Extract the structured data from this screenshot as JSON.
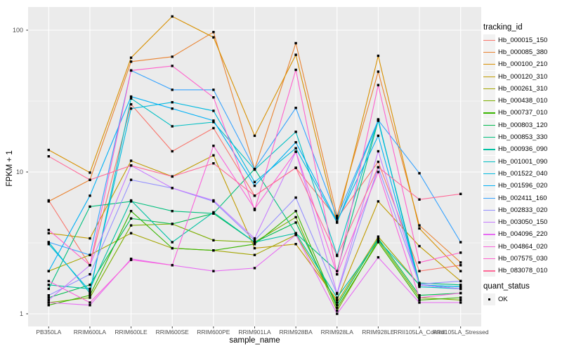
{
  "chart_data": {
    "type": "line",
    "xlabel": "sample_name",
    "ylabel": "FPKM + 1",
    "y_scale": "log10",
    "y_ticks": [
      1,
      10,
      100
    ],
    "y_tick_labels": [
      "1",
      "10",
      "100"
    ],
    "y_minor_ticks": [
      3.162,
      31.623
    ],
    "ylim": [
      0.9,
      148
    ],
    "grid": "on",
    "legend_position": "right",
    "point_shape": "filled-black-square",
    "categories": [
      "PB350LA",
      "RRIM600LA",
      "RRIM600LE",
      "RRIM600SE",
      "RRIM600PE",
      "RRIM901LA",
      "RRIM928BA",
      "RRIM928LA",
      "RRIM928LE",
      "RRII105LA_Control",
      "RRII105LA_Stressed"
    ],
    "series": [
      {
        "name": "Hb_000015_150",
        "color": "#F8766D",
        "values": [
          6.3,
          2.2,
          30,
          14,
          20.4,
          6.8,
          10.7,
          4.7,
          11.8,
          2.0,
          2.2
        ]
      },
      {
        "name": "Hb_000085_380",
        "color": "#EA8331",
        "values": [
          6.2,
          8.8,
          60,
          65,
          97,
          10.5,
          81,
          4.9,
          51,
          4.2,
          2.3
        ]
      },
      {
        "name": "Hb_000100_210",
        "color": "#D89000",
        "values": [
          14.3,
          9.9,
          64,
          125,
          89,
          18,
          67,
          4.4,
          66,
          4.0,
          2.0
        ]
      },
      {
        "name": "Hb_000120_310",
        "color": "#C09B00",
        "values": [
          3.7,
          3.4,
          12,
          9.3,
          13.1,
          2.9,
          3.1,
          1.25,
          6.2,
          3.0,
          1.7
        ]
      },
      {
        "name": "Hb_000261_310",
        "color": "#A3A500",
        "values": [
          2.0,
          2.6,
          3.7,
          2.9,
          2.8,
          2.6,
          3.6,
          1.2,
          3.5,
          1.6,
          1.5
        ]
      },
      {
        "name": "Hb_000438_010",
        "color": "#7CAE00",
        "values": [
          1.2,
          1.3,
          4.2,
          4.3,
          3.3,
          3.2,
          4.8,
          1.05,
          3.3,
          1.3,
          1.25
        ]
      },
      {
        "name": "Hb_000737_010",
        "color": "#39B600",
        "values": [
          1.15,
          1.35,
          5.3,
          2.9,
          2.8,
          3.1,
          5.3,
          1.1,
          3.2,
          1.25,
          1.3
        ]
      },
      {
        "name": "Hb_000803_120",
        "color": "#00BB4E",
        "values": [
          1.3,
          1.6,
          4.7,
          4.3,
          5.1,
          3.2,
          4.4,
          1.15,
          3.4,
          1.35,
          1.4
        ]
      },
      {
        "name": "Hb_000853_330",
        "color": "#00BF7D",
        "values": [
          1.5,
          5.7,
          6.2,
          5.3,
          5.1,
          10.5,
          3.7,
          2.0,
          23,
          1.65,
          1.6
        ]
      },
      {
        "name": "Hb_000936_090",
        "color": "#00C1A3",
        "values": [
          1.6,
          1.5,
          6.3,
          3.2,
          5.2,
          3.2,
          3.7,
          1.3,
          3.3,
          1.6,
          1.55
        ]
      },
      {
        "name": "Hb_001001_090",
        "color": "#00BFC4",
        "values": [
          3.2,
          1.4,
          33,
          21,
          22.5,
          10.4,
          19.2,
          2.6,
          23.5,
          1.55,
          1.5
        ]
      },
      {
        "name": "Hb_001522_040",
        "color": "#00BAE0",
        "values": [
          3.1,
          1.45,
          28,
          31,
          27,
          8.5,
          14.7,
          4.4,
          23,
          1.6,
          1.5
        ]
      },
      {
        "name": "Hb_001596_020",
        "color": "#00B0F6",
        "values": [
          2.0,
          6.8,
          34,
          28,
          23,
          8.0,
          16.2,
          4.5,
          18,
          1.6,
          1.55
        ]
      },
      {
        "name": "Hb_002411_160",
        "color": "#35A2FF",
        "values": [
          3.2,
          2.6,
          52,
          38,
          38,
          10.5,
          28.3,
          4.8,
          23.2,
          9.8,
          3.2
        ]
      },
      {
        "name": "Hb_002833_020",
        "color": "#9590FF",
        "values": [
          1.35,
          1.9,
          8.8,
          7.7,
          6.2,
          3.3,
          6.6,
          1.38,
          10.8,
          1.62,
          1.7
        ]
      },
      {
        "name": "Hb_003050_150",
        "color": "#C77CFF",
        "values": [
          1.25,
          2.2,
          11.1,
          7.7,
          6.3,
          3.4,
          13.9,
          1.4,
          14,
          1.6,
          1.5
        ]
      },
      {
        "name": "Hb_004096_220",
        "color": "#E76BF3",
        "values": [
          1.2,
          1.15,
          2.44,
          2.2,
          2.0,
          2.1,
          3.6,
          1.0,
          2.5,
          1.2,
          1.2
        ]
      },
      {
        "name": "Hb_004864_020",
        "color": "#FA62DB",
        "values": [
          1.7,
          1.2,
          2.4,
          2.2,
          15.3,
          5.5,
          13.9,
          1.9,
          10,
          1.3,
          1.4
        ]
      },
      {
        "name": "Hb_007575_030",
        "color": "#FF61CC",
        "values": [
          3.9,
          2.2,
          52,
          56,
          33.6,
          5.4,
          52.5,
          1.9,
          41,
          2.3,
          2.7
        ]
      },
      {
        "name": "Hb_083078_010",
        "color": "#FF6A98",
        "values": [
          12.9,
          8.8,
          11.1,
          9.3,
          11.5,
          6.8,
          10.7,
          2.56,
          10.8,
          6.4,
          7.0
        ]
      }
    ]
  },
  "legend": {
    "title": "tracking_id"
  },
  "quant_legend": {
    "title": "quant_status",
    "items": [
      {
        "label": "OK"
      }
    ]
  },
  "colors": {
    "panel_bg": "#EBEBEB",
    "grid": "#FFFFFF",
    "axis_text": "#4D4D4D",
    "axis_tick": "#333333",
    "point": "#000000",
    "legend_key_bg": "#F2F2F2"
  }
}
